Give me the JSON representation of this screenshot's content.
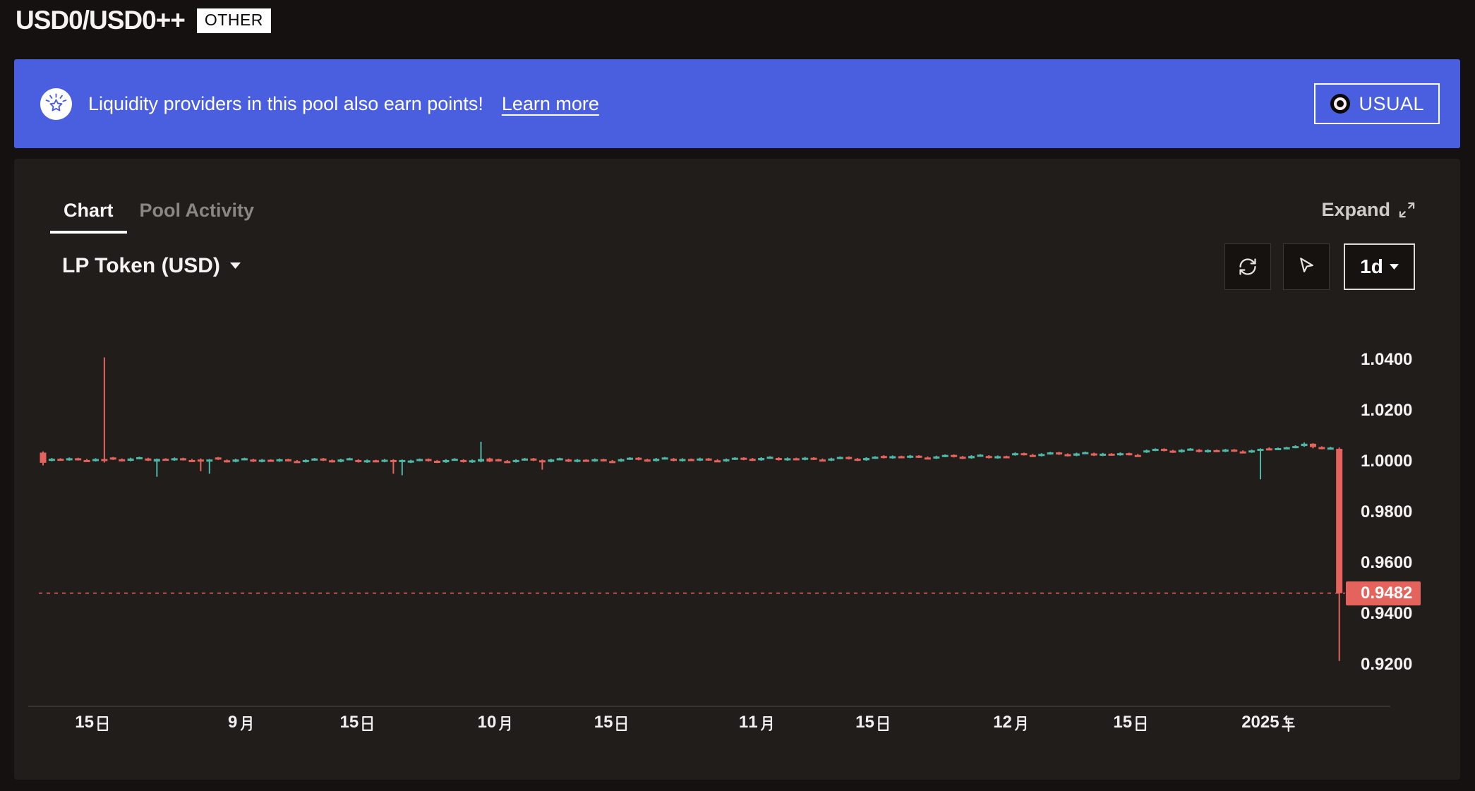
{
  "header": {
    "title": "USD0/USD0++",
    "badge": "OTHER"
  },
  "banner": {
    "bg_color": "#4a5fe0",
    "icon": "points-badge-icon",
    "text": "Liquidity providers in this pool also earn points!",
    "link_label": "Learn more",
    "partner_button_label": "USUAL"
  },
  "panel": {
    "tabs": [
      {
        "label": "Chart",
        "active": true
      },
      {
        "label": "Pool Activity",
        "active": false
      }
    ],
    "expand_label": "Expand",
    "series_selector_label": "LP Token (USD)",
    "toolbar": {
      "refresh_icon": "refresh-icon",
      "cursor_icon": "cursor-icon",
      "interval_label": "1d"
    }
  },
  "chart_data": {
    "type": "candlestick",
    "pair": "USD0/USD0++",
    "series": "LP Token (USD)",
    "interval": "1d",
    "up_color": "#4eb7a6",
    "down_color": "#e4635c",
    "last_price": 0.9482,
    "last_price_direction": "down",
    "y_axis": {
      "ticks": [
        1.04,
        1.02,
        1.0,
        0.98,
        0.96,
        0.94,
        0.92
      ],
      "range": [
        0.9053,
        1.0553
      ],
      "decimals": 4,
      "position": "right"
    },
    "x_axis": {
      "ticks": [
        {
          "label": "15日",
          "i": 5.65
        },
        {
          "label": "9月",
          "i": 22.58
        },
        {
          "label": "15日",
          "i": 35.89
        },
        {
          "label": "10月",
          "i": 51.61
        },
        {
          "label": "15日",
          "i": 64.92
        },
        {
          "label": "11月",
          "i": 81.45
        },
        {
          "label": "15日",
          "i": 94.76
        },
        {
          "label": "12月",
          "i": 110.48
        },
        {
          "label": "15日",
          "i": 124.19
        },
        {
          "label": "2025年",
          "i": 139.92
        }
      ]
    },
    "candles": [
      [
        1.0035,
        1.004,
        0.9985,
        0.9995
      ],
      [
        1.0004,
        1.0014,
        1.0001,
        1.0011
      ],
      [
        1.0011,
        1.0013,
        1.0003,
        1.0005
      ],
      [
        1.0005,
        1.0016,
        1.0003,
        1.0013
      ],
      [
        1.0013,
        1.0015,
        1.0004,
        1.0006
      ],
      [
        1.0006,
        1.001,
        0.9999,
        1.0002
      ],
      [
        1.0002,
        1.0013,
        1.0,
        1.001
      ],
      [
        1.001,
        1.041,
        0.9996,
        1.0002
      ],
      [
        1.0016,
        1.0018,
        1.0006,
        1.0009
      ],
      [
        1.0009,
        1.0012,
        1.0,
        1.0003
      ],
      [
        1.0003,
        1.0015,
        1.0001,
        1.0012
      ],
      [
        1.0012,
        1.0019,
        1.0009,
        1.0017
      ],
      [
        1.0012,
        1.0015,
        1.0002,
        1.0004
      ],
      [
        1.0,
        1.0012,
        0.994,
        1.001
      ],
      [
        1.0011,
        1.0013,
        1.0003,
        1.0005
      ],
      [
        1.0005,
        1.0016,
        1.0003,
        1.0013
      ],
      [
        1.0013,
        1.0015,
        1.0004,
        1.0006
      ],
      [
        1.0006,
        1.001,
        0.9999,
        1.0002
      ],
      [
        1.0008,
        1.0012,
        0.9962,
        1.0
      ],
      [
        1.0,
        1.001,
        0.9952,
        1.0008
      ],
      [
        1.0016,
        1.0018,
        1.0006,
        1.0009
      ],
      [
        1.0005,
        1.0008,
        0.9996,
        0.9999
      ],
      [
        0.9999,
        1.0011,
        0.9997,
        1.0008
      ],
      [
        1.0008,
        1.0015,
        1.0005,
        1.0013
      ],
      [
        1.0008,
        1.0011,
        0.9998,
        1.0
      ],
      [
        1.0,
        1.001,
        0.9997,
        1.0007
      ],
      [
        1.0007,
        1.0009,
        0.9999,
        1.0001
      ],
      [
        1.0001,
        1.0012,
        0.9999,
        1.0009
      ],
      [
        1.0009,
        1.0011,
        1.0,
        1.0002
      ],
      [
        1.0002,
        1.0006,
        0.9995,
        0.9998
      ],
      [
        0.9998,
        1.0009,
        0.9996,
        1.0006
      ],
      [
        1.0006,
        1.0014,
        1.0003,
        1.0012
      ],
      [
        1.0012,
        1.0014,
        1.0002,
        1.0005
      ],
      [
        1.0005,
        1.0008,
        0.9996,
        0.9999
      ],
      [
        0.9999,
        1.0011,
        0.9997,
        1.0008
      ],
      [
        1.0008,
        1.0015,
        1.0005,
        1.0013
      ],
      [
        1.0006,
        1.0009,
        0.9996,
        0.9998
      ],
      [
        0.9998,
        1.0008,
        0.9995,
        1.0005
      ],
      [
        1.0005,
        1.0007,
        0.9997,
        0.9999
      ],
      [
        0.9999,
        1.001,
        0.9997,
        1.0007
      ],
      [
        1.0006,
        1.0009,
        0.9952,
        0.9999
      ],
      [
        0.9999,
        1.0008,
        0.9946,
        1.0006
      ],
      [
        0.9996,
        1.0007,
        0.9994,
        1.0004
      ],
      [
        1.0004,
        1.0012,
        1.0001,
        1.001
      ],
      [
        1.001,
        1.0012,
        1.0,
        1.0003
      ],
      [
        1.0003,
        1.0006,
        0.9994,
        0.9997
      ],
      [
        0.9997,
        1.0009,
        0.9995,
        1.0006
      ],
      [
        1.0006,
        1.0013,
        1.0003,
        1.0011
      ],
      [
        1.0006,
        1.0009,
        0.9996,
        0.9998
      ],
      [
        0.9998,
        1.0008,
        0.9995,
        1.0005
      ],
      [
        1.0,
        1.0078,
        0.9997,
        1.001
      ],
      [
        1.0012,
        1.0015,
        0.9998,
        1.0
      ],
      [
        1.0009,
        1.0011,
        1.0,
        1.0002
      ],
      [
        1.0002,
        1.0006,
        0.9995,
        0.9998
      ],
      [
        0.9998,
        1.0009,
        0.9996,
        1.0006
      ],
      [
        1.0006,
        1.0014,
        1.0003,
        1.0012
      ],
      [
        1.0012,
        1.0014,
        1.0002,
        1.0005
      ],
      [
        1.0005,
        1.0008,
        0.9968,
        0.9999
      ],
      [
        0.9999,
        1.0011,
        0.9997,
        1.0008
      ],
      [
        1.0008,
        1.0015,
        1.0005,
        1.0013
      ],
      [
        1.0008,
        1.0011,
        0.9998,
        1.0
      ],
      [
        1.0,
        1.001,
        0.9997,
        1.0007
      ],
      [
        1.0007,
        1.0009,
        0.9999,
        1.0001
      ],
      [
        1.0001,
        1.0012,
        0.9999,
        1.0009
      ],
      [
        1.0009,
        1.0011,
        1.0,
        1.0002
      ],
      [
        1.0002,
        1.0006,
        0.9995,
        0.9998
      ],
      [
        1.0001,
        1.0012,
        0.9999,
        1.0009
      ],
      [
        1.0009,
        1.0017,
        1.0006,
        1.0015
      ],
      [
        1.0015,
        1.0017,
        1.0005,
        1.0008
      ],
      [
        1.0008,
        1.0011,
        0.9999,
        1.0002
      ],
      [
        1.0002,
        1.0014,
        1.0,
        1.0011
      ],
      [
        1.0011,
        1.0018,
        1.0008,
        1.0016
      ],
      [
        1.0011,
        1.0014,
        1.0001,
        1.0003
      ],
      [
        1.0003,
        1.0013,
        1.0,
        1.001
      ],
      [
        1.001,
        1.0012,
        1.0002,
        1.0004
      ],
      [
        1.0004,
        1.0015,
        1.0002,
        1.0012
      ],
      [
        1.0012,
        1.0014,
        1.0003,
        1.0005
      ],
      [
        1.0005,
        1.0009,
        0.9998,
        1.0001
      ],
      [
        1.0001,
        1.0012,
        0.9999,
        1.0009
      ],
      [
        1.0009,
        1.0017,
        1.0006,
        1.0015
      ],
      [
        1.0015,
        1.0017,
        1.0005,
        1.0008
      ],
      [
        1.0011,
        1.0014,
        1.0002,
        1.0005
      ],
      [
        1.0005,
        1.0017,
        1.0003,
        1.0014
      ],
      [
        1.0014,
        1.0021,
        1.0011,
        1.0019
      ],
      [
        1.0014,
        1.0017,
        1.0004,
        1.0006
      ],
      [
        1.0006,
        1.0016,
        1.0003,
        1.0013
      ],
      [
        1.0013,
        1.0015,
        1.0005,
        1.0007
      ],
      [
        1.0007,
        1.0018,
        1.0005,
        1.0015
      ],
      [
        1.0015,
        1.0017,
        1.0006,
        1.0008
      ],
      [
        1.0008,
        1.0012,
        1.0001,
        1.0004
      ],
      [
        1.0004,
        1.0015,
        1.0002,
        1.0012
      ],
      [
        1.0012,
        1.002,
        1.0009,
        1.0018
      ],
      [
        1.0018,
        1.002,
        1.0008,
        1.0011
      ],
      [
        1.0011,
        1.0014,
        1.0002,
        1.0005
      ],
      [
        1.0005,
        1.0017,
        1.0003,
        1.0014
      ],
      [
        1.0014,
        1.0021,
        1.0011,
        1.0019
      ],
      [
        1.0022,
        1.0025,
        1.0012,
        1.0014
      ],
      [
        1.0014,
        1.0024,
        1.0011,
        1.0021
      ],
      [
        1.0021,
        1.0023,
        1.0013,
        1.0015
      ],
      [
        1.0015,
        1.0026,
        1.0013,
        1.0023
      ],
      [
        1.0023,
        1.0025,
        1.0014,
        1.0016
      ],
      [
        1.0016,
        1.002,
        1.0009,
        1.0012
      ],
      [
        1.0012,
        1.0023,
        1.001,
        1.002
      ],
      [
        1.002,
        1.0028,
        1.0017,
        1.0026
      ],
      [
        1.0026,
        1.0028,
        1.0016,
        1.0019
      ],
      [
        1.0019,
        1.0022,
        1.001,
        1.0013
      ],
      [
        1.0013,
        1.0025,
        1.0011,
        1.0022
      ],
      [
        1.0022,
        1.0029,
        1.0019,
        1.0027
      ],
      [
        1.0022,
        1.0025,
        1.0012,
        1.0014
      ],
      [
        1.0014,
        1.0024,
        1.0011,
        1.0021
      ],
      [
        1.0021,
        1.0023,
        1.0013,
        1.0015
      ],
      [
        1.0025,
        1.0036,
        1.0023,
        1.0033
      ],
      [
        1.0033,
        1.0035,
        1.0024,
        1.0026
      ],
      [
        1.0026,
        1.003,
        1.0019,
        1.0022
      ],
      [
        1.0022,
        1.0033,
        1.002,
        1.003
      ],
      [
        1.003,
        1.0038,
        1.0027,
        1.0036
      ],
      [
        1.0036,
        1.0038,
        1.0026,
        1.0029
      ],
      [
        1.0029,
        1.0032,
        1.002,
        1.0023
      ],
      [
        1.0023,
        1.0035,
        1.0021,
        1.0032
      ],
      [
        1.0032,
        1.0039,
        1.0029,
        1.0037
      ],
      [
        1.0032,
        1.0035,
        1.0022,
        1.0024
      ],
      [
        1.0024,
        1.0034,
        1.0021,
        1.0031
      ],
      [
        1.0031,
        1.0033,
        1.0023,
        1.0025
      ],
      [
        1.0025,
        1.0036,
        1.0023,
        1.0033
      ],
      [
        1.0033,
        1.0035,
        1.0024,
        1.0026
      ],
      [
        1.0026,
        1.003,
        1.0019,
        1.0022
      ],
      [
        1.0036,
        1.0047,
        1.0034,
        1.0044
      ],
      [
        1.0044,
        1.0052,
        1.0041,
        1.005
      ],
      [
        1.005,
        1.0052,
        1.004,
        1.0043
      ],
      [
        1.0043,
        1.0046,
        1.0034,
        1.0037
      ],
      [
        1.0037,
        1.0049,
        1.0035,
        1.0046
      ],
      [
        1.0046,
        1.0053,
        1.0043,
        1.0051
      ],
      [
        1.0046,
        1.0049,
        1.0036,
        1.0038
      ],
      [
        1.0038,
        1.0048,
        1.0035,
        1.0045
      ],
      [
        1.0045,
        1.0047,
        1.0037,
        1.0039
      ],
      [
        1.0039,
        1.005,
        1.0037,
        1.0047
      ],
      [
        1.0047,
        1.0049,
        1.0038,
        1.004
      ],
      [
        1.004,
        1.0044,
        1.0033,
        1.0036
      ],
      [
        1.0036,
        1.0047,
        1.0034,
        1.0044
      ],
      [
        1.0044,
        1.0052,
        0.993,
        1.005
      ],
      [
        1.0052,
        1.0056,
        1.0046,
        1.0049
      ],
      [
        1.0049,
        1.0055,
        1.0046,
        1.0053
      ],
      [
        1.0053,
        1.0058,
        1.0049,
        1.0056
      ],
      [
        1.0056,
        1.0064,
        1.0052,
        1.0061
      ],
      [
        1.0061,
        1.0075,
        1.0058,
        1.007
      ],
      [
        1.007,
        1.0072,
        1.0052,
        1.0057
      ],
      [
        1.0057,
        1.006,
        1.0048,
        1.0051
      ],
      [
        1.0051,
        1.0058,
        1.0047,
        1.0055
      ],
      [
        1.005,
        1.0055,
        0.9215,
        0.9482
      ]
    ]
  }
}
